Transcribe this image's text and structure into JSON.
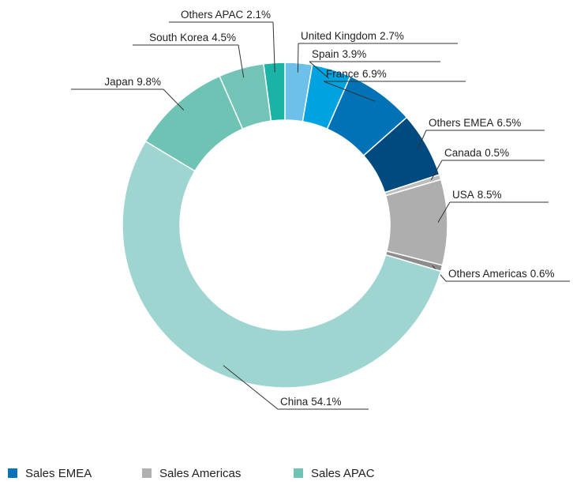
{
  "chart_data": {
    "type": "donut",
    "categories": [
      "United Kingdom",
      "Spain",
      "France",
      "Others EMEA",
      "Canada",
      "USA",
      "Others Americas",
      "China",
      "Japan",
      "South Korea",
      "Others APAC"
    ],
    "values": [
      2.7,
      3.9,
      6.9,
      6.5,
      0.5,
      8.5,
      0.6,
      54.1,
      9.8,
      4.5,
      2.1
    ],
    "value_labels": [
      "2.7%",
      "3.9%",
      "6.9%",
      "6.5%",
      "0.5%",
      "8.5%",
      "0.6%",
      "54.1%",
      "9.8%",
      "4.5%",
      "2.1%"
    ],
    "colors": [
      "#6cc0ea",
      "#00a3e0",
      "#0072b5",
      "#004a80",
      "#bdbdbd",
      "#aeaeae",
      "#8c8c8c",
      "#9fd5d1",
      "#6fc3b5",
      "#73c4b6",
      "#1ab3a6"
    ],
    "legend": [
      {
        "name": "Sales EMEA",
        "color": "#0072b5"
      },
      {
        "name": "Sales Americas",
        "color": "#b0b0b0"
      },
      {
        "name": "Sales APAC",
        "color": "#6fc3b5"
      }
    ]
  }
}
